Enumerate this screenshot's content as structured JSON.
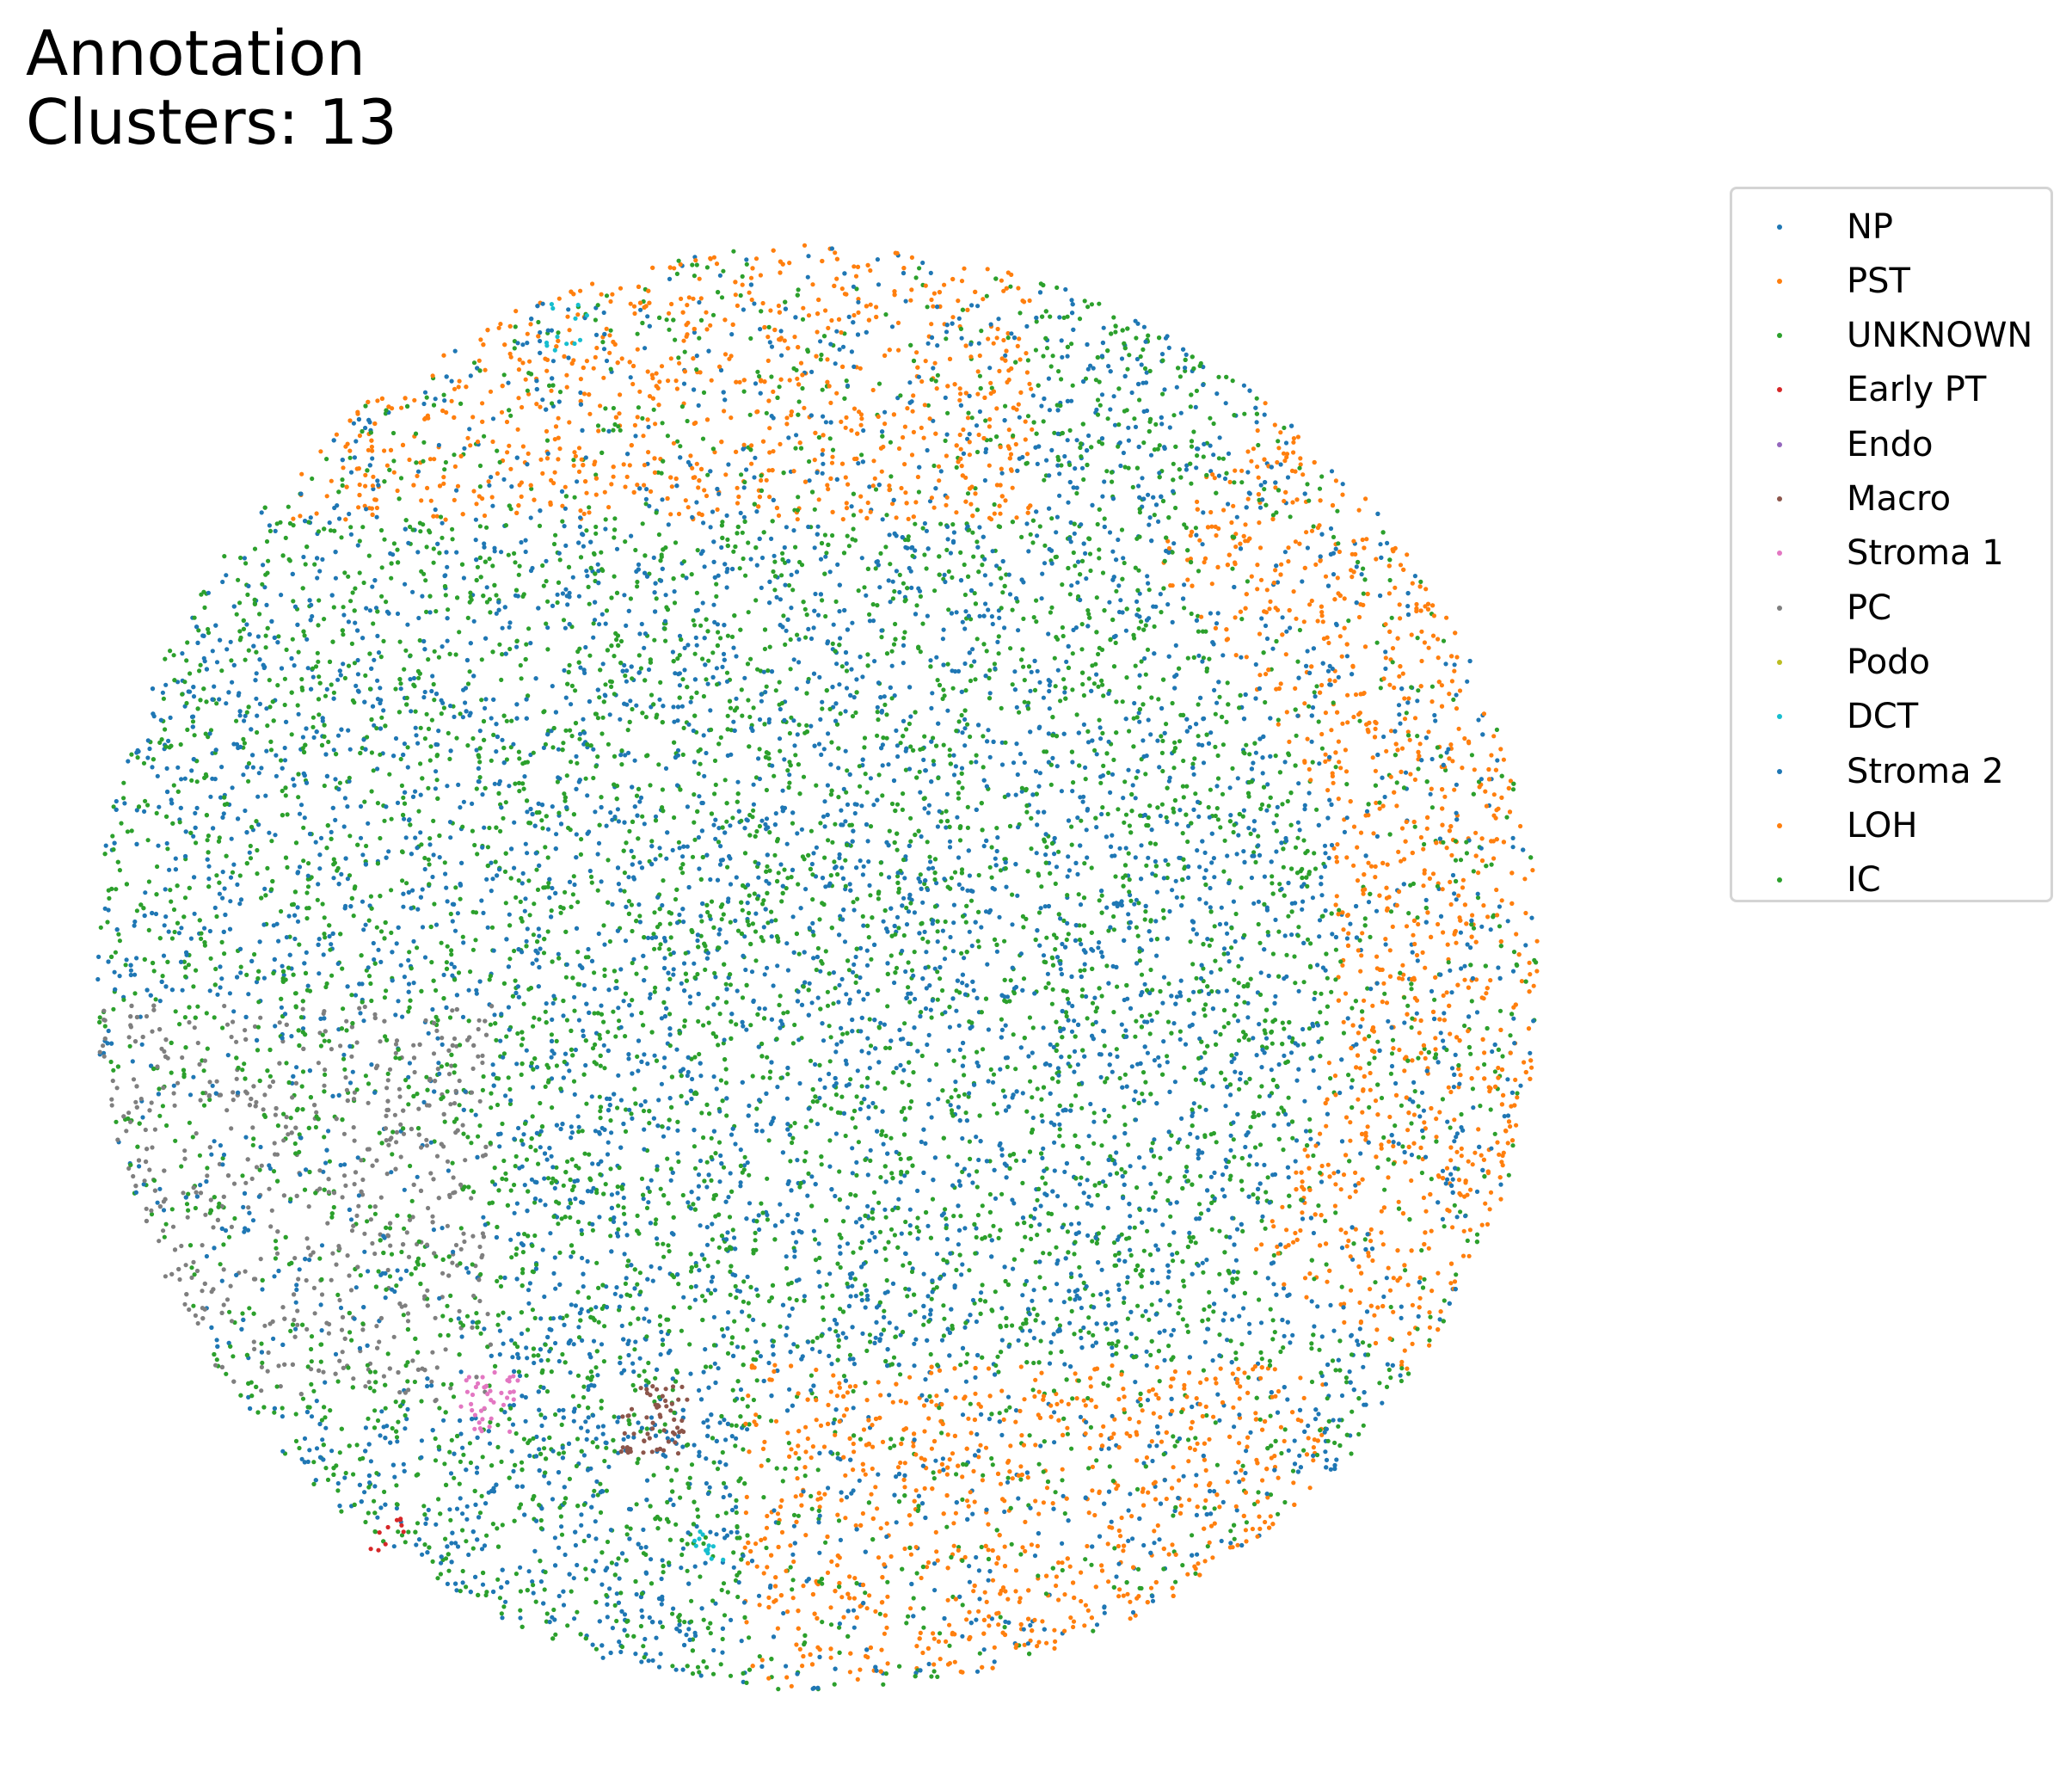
{
  "chart_data": {
    "type": "scatter",
    "title": "Annotation",
    "subtitle": "Clusters: 13",
    "legend_position": "right, outside plot, top",
    "axes_visible": false,
    "grid": false,
    "series": [
      {
        "name": "NP",
        "color": "#1f77b4",
        "region": "dispersed throughout disk"
      },
      {
        "name": "PST",
        "color": "#ff7f0e",
        "region": "top rim, right rim and bottom-right band"
      },
      {
        "name": "UNKNOWN",
        "color": "#2ca02c",
        "region": "dispersed throughout disk"
      },
      {
        "name": "Early PT",
        "color": "#d62728",
        "region": "few points near lower-left"
      },
      {
        "name": "Endo",
        "color": "#9467bd",
        "region": "sparse"
      },
      {
        "name": "Macro",
        "color": "#8c564b",
        "region": "small cluster lower-center-left"
      },
      {
        "name": "Stroma 1",
        "color": "#e377c2",
        "region": "small cluster lower-left"
      },
      {
        "name": "PC",
        "color": "#7f7f7f",
        "region": "left-lower edge band"
      },
      {
        "name": "Podo",
        "color": "#bcbd22",
        "region": "sparse"
      },
      {
        "name": "DCT",
        "color": "#17becf",
        "region": "sparse, top and bottom center"
      },
      {
        "name": "Stroma 2",
        "color": "#1f77b4",
        "region": "dispersed"
      },
      {
        "name": "LOH",
        "color": "#ff7f0e",
        "region": "rim regions"
      },
      {
        "name": "IC",
        "color": "#2ca02c",
        "region": "dispersed"
      }
    ]
  }
}
